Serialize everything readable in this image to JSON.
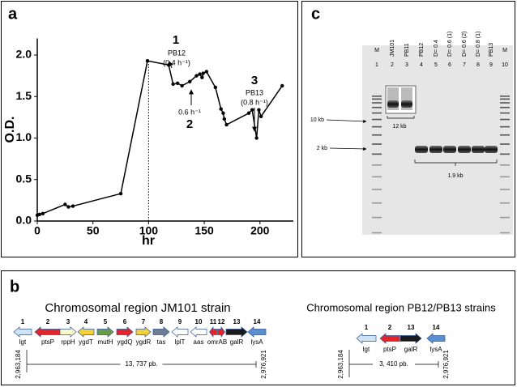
{
  "chart_data": {
    "type": "line",
    "label": "a",
    "x_label": "hr",
    "y_label": "O.D.",
    "x": [
      0,
      2,
      5,
      25,
      28,
      32,
      75,
      99,
      118,
      122,
      126,
      130,
      137,
      143,
      146,
      148,
      149,
      152,
      160,
      165,
      167,
      168,
      170,
      190,
      193,
      197,
      199,
      201,
      220
    ],
    "values": [
      0.07,
      0.08,
      0.09,
      0.2,
      0.17,
      0.18,
      0.33,
      1.93,
      1.88,
      1.65,
      1.66,
      1.63,
      1.68,
      1.75,
      1.77,
      1.73,
      1.78,
      1.8,
      1.61,
      1.35,
      1.3,
      1.23,
      1.16,
      1.3,
      1.34,
      1.0,
      1.34,
      1.26,
      1.63
    ],
    "color": "#000000",
    "xlim": [
      0,
      230
    ],
    "ylim": [
      0,
      2.2
    ],
    "xticks": [
      0,
      50,
      100,
      150,
      200
    ],
    "yticks": [
      {
        "value": 0,
        "label": "0.0"
      },
      0.5,
      {
        "value": 1,
        "label": "1.0"
      },
      1.5,
      {
        "value": 2,
        "label": "2.0"
      }
    ],
    "reference_line_x": 100,
    "annotations": [
      "1",
      "PB12",
      "(0.4 h⁻¹)",
      "0.6 h⁻¹",
      "2",
      "3",
      "PB13",
      "(0.8 h⁻¹)"
    ]
  },
  "gel": {
    "label": "c",
    "lane_labels": [
      "M",
      "JM101",
      "PB11",
      "PB12",
      "D= 0.4",
      "D= 0.6  (1)",
      "D= 0.6  (2)",
      "D= 0.8  (1)",
      "PB13",
      "M"
    ],
    "lane_numbers": [
      "1",
      "2",
      "3",
      "4",
      "5",
      "6",
      "7",
      "8",
      "9",
      "10"
    ],
    "size_markers": [
      "10 kb",
      "2 kb"
    ],
    "band_sizes": [
      "12 kb",
      "1.9 kb"
    ]
  },
  "diagram": {
    "label": "b",
    "regions": [
      {
        "title": "Chromosomal region JM101 strain",
        "start": "2,963,184",
        "end": "2,976,921",
        "length": "13, 737 pb.",
        "genes": [
          {
            "number": "1",
            "name": "lgt",
            "color": "#cfe3f5"
          },
          {
            "number": "2",
            "name": "ptsP",
            "color": "#e0262b"
          },
          {
            "number": "3",
            "name": "rppH",
            "color": "#fbf7c8"
          },
          {
            "number": "4",
            "name": "ygdT",
            "color": "#f4d03a"
          },
          {
            "number": "5",
            "name": "mutH",
            "color": "#6b9a4a"
          },
          {
            "number": "6",
            "name": "ygdQ",
            "color": "#e0262b"
          },
          {
            "number": "7",
            "name": "ygdR",
            "color": "#f4d03a"
          },
          {
            "number": "8",
            "name": "tas",
            "color": "#6d7b93"
          },
          {
            "number": "9",
            "name": "lplT",
            "color": "#ffffff"
          },
          {
            "number": "10",
            "name": "aas",
            "color": "#ffffff"
          },
          {
            "number": "11",
            "name": "omrAB",
            "color": "#e0262b"
          },
          {
            "number": "12",
            "name": null,
            "color": "#e0262b"
          },
          {
            "number": "13",
            "name": "galR",
            "color": "#1a1a1a"
          },
          {
            "number": "14",
            "name": "lysA",
            "color": "#5b8fd0"
          }
        ]
      },
      {
        "title": "Chromosomal region PB12/PB13 strains",
        "start": "2,963,184",
        "end": "2,976,921",
        "length": "3, 410 pb.",
        "genes": [
          {
            "number": "1",
            "name": "lgt",
            "color": "#cfe3f5"
          },
          {
            "number": "2",
            "name": "ptsP",
            "color": "#e0262b"
          },
          {
            "number": "13",
            "name": "galR",
            "color": "#1a1a1a"
          },
          {
            "number": "14",
            "name": "lysA",
            "color": "#5b8fd0"
          }
        ]
      }
    ]
  }
}
